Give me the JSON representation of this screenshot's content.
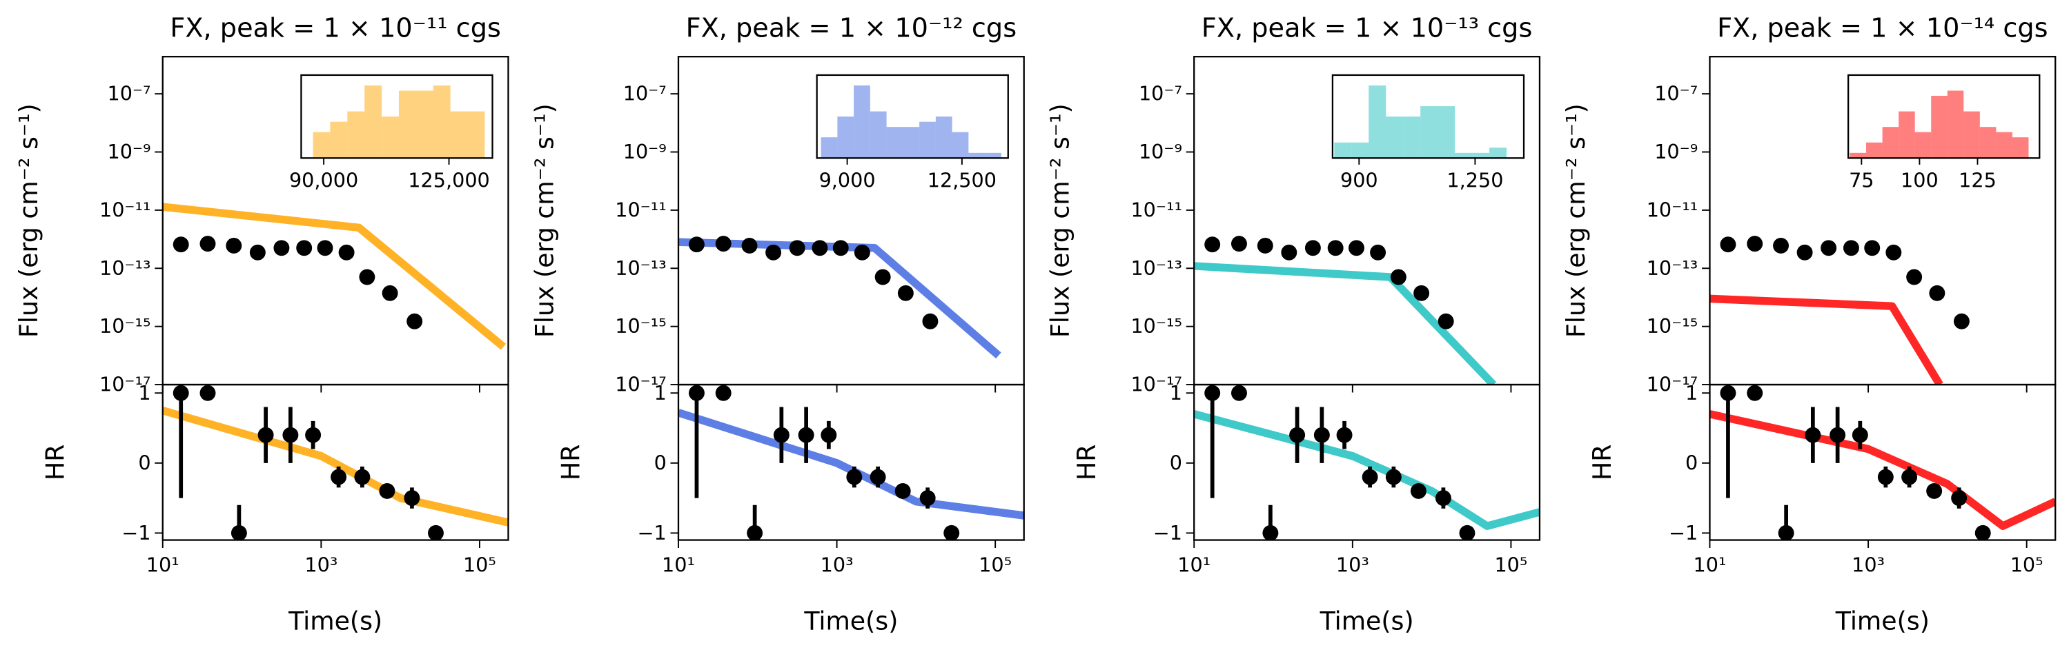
{
  "chart_data": [
    {
      "type": "line",
      "title": "FX, peak = 1 × 10⁻¹¹ cgs",
      "color": "#ffa500",
      "xlabel": "Time(s)",
      "log_x": true,
      "xlim": [
        10,
        230000
      ],
      "xticks": [
        {
          "value": 10,
          "label": "10¹"
        },
        {
          "value": 1000,
          "label": "10³"
        },
        {
          "value": 100000,
          "label": "10⁵"
        }
      ],
      "flux": {
        "ylabel": "Flux (erg cm⁻² s⁻¹)",
        "log_y": true,
        "ylim": [
          1e-17,
          1.9e-06
        ],
        "yticks": [
          {
            "value": 1e-07,
            "label": "10⁻⁷"
          },
          {
            "value": 1e-09,
            "label": "10⁻⁹"
          },
          {
            "value": 1e-11,
            "label": "10⁻¹¹"
          },
          {
            "value": 1e-13,
            "label": "10⁻¹³"
          },
          {
            "value": 1e-15,
            "label": "10⁻¹⁵"
          },
          {
            "value": 1e-17,
            "label": "10⁻¹⁷"
          }
        ],
        "data": {
          "x": [
            17,
            37,
            79,
            158,
            316,
            610,
            1120,
            2090,
            3800,
            7400,
            15100
          ],
          "values": [
            6.6e-13,
            7e-13,
            6e-13,
            3.5e-13,
            5e-13,
            5e-13,
            5e-13,
            3.5e-13,
            5e-14,
            1.4e-14,
            1.5e-15
          ]
        },
        "model": {
          "x": [
            10,
            3000,
            200000
          ],
          "values": [
            1.3e-11,
            2.5e-12,
            2e-16
          ]
        }
      },
      "hr": {
        "ylabel": "HR",
        "ylim": [
          -1.1,
          1.12
        ],
        "yticks": [
          {
            "value": -1,
            "label": "−1"
          },
          0,
          1
        ],
        "data": {
          "x": [
            17,
            37,
            92,
            200,
            410,
            790,
            1660,
            3300,
            6800,
            14000,
            28000
          ],
          "values": [
            1,
            1,
            -1,
            0.4,
            0.4,
            0.4,
            -0.2,
            -0.2,
            -0.4,
            -0.5,
            -1
          ],
          "errors": [
            1.5,
            0.1,
            0.4,
            0.4,
            0.4,
            0.2,
            0.15,
            0.15,
            0.05,
            0.15,
            0.1
          ]
        },
        "model": {
          "x": [
            10,
            1000,
            10000,
            230000
          ],
          "values": [
            0.75,
            0.1,
            -0.5,
            -0.85
          ]
        }
      },
      "inset": {
        "type": "histogram",
        "xlim": [
          83700,
          137150
        ],
        "ylim": [
          0,
          16
        ],
        "xticks": [
          {
            "value": 90000,
            "label": "90,000"
          },
          {
            "value": 125000,
            "label": "125,000"
          }
        ],
        "bins": [
          87000,
          91800,
          96600,
          101400,
          106200,
          111000,
          115800,
          120600,
          125400,
          130200,
          135000
        ],
        "counts": [
          5,
          7,
          9,
          14,
          8,
          13,
          13,
          14,
          9,
          9
        ]
      }
    },
    {
      "type": "line",
      "title": "FX, peak = 1 × 10⁻¹² cgs",
      "color": "#4169e1",
      "xlabel": "Time(s)",
      "log_x": true,
      "xlim": [
        10,
        230000
      ],
      "xticks": [
        {
          "value": 10,
          "label": "10¹"
        },
        {
          "value": 1000,
          "label": "10³"
        },
        {
          "value": 100000,
          "label": "10⁵"
        }
      ],
      "flux": {
        "ylabel": "Flux (erg cm⁻² s⁻¹)",
        "log_y": true,
        "ylim": [
          1e-17,
          1.9e-06
        ],
        "yticks": [
          {
            "value": 1e-07,
            "label": "10⁻⁷"
          },
          {
            "value": 1e-09,
            "label": "10⁻⁹"
          },
          {
            "value": 1e-11,
            "label": "10⁻¹¹"
          },
          {
            "value": 1e-13,
            "label": "10⁻¹³"
          },
          {
            "value": 1e-15,
            "label": "10⁻¹⁵"
          },
          {
            "value": 1e-17,
            "label": "10⁻¹⁷"
          }
        ],
        "data": {
          "x": [
            17,
            37,
            79,
            158,
            316,
            610,
            1120,
            2090,
            3800,
            7400,
            15100
          ],
          "values": [
            6.6e-13,
            7e-13,
            6e-13,
            3.5e-13,
            5e-13,
            5e-13,
            5e-13,
            3.5e-13,
            5e-14,
            1.4e-14,
            1.5e-15
          ]
        },
        "model": {
          "x": [
            10,
            3000,
            110000
          ],
          "values": [
            8e-13,
            5e-13,
            1e-16
          ]
        }
      },
      "hr": {
        "ylabel": "HR",
        "ylim": [
          -1.1,
          1.12
        ],
        "yticks": [
          {
            "value": -1,
            "label": "−1"
          },
          0,
          1
        ],
        "data": {
          "x": [
            17,
            37,
            92,
            200,
            410,
            790,
            1660,
            3300,
            6800,
            14000,
            28000
          ],
          "values": [
            1,
            1,
            -1,
            0.4,
            0.4,
            0.4,
            -0.2,
            -0.2,
            -0.4,
            -0.5,
            -1
          ],
          "errors": [
            1.5,
            0.1,
            0.4,
            0.4,
            0.4,
            0.2,
            0.15,
            0.15,
            0.05,
            0.15,
            0.1
          ]
        },
        "model": {
          "x": [
            10,
            1000,
            10000,
            230000
          ],
          "values": [
            0.72,
            0.0,
            -0.55,
            -0.75
          ]
        }
      },
      "inset": {
        "type": "histogram",
        "xlim": [
          8075,
          13908
        ],
        "ylim": [
          0,
          16
        ],
        "xticks": [
          {
            "value": 9000,
            "label": "9,000"
          },
          {
            "value": 12500,
            "label": "12,500"
          }
        ],
        "bins": [
          8200,
          8700,
          9200,
          9700,
          10200,
          10700,
          11200,
          11700,
          12200,
          12700,
          13200,
          13700
        ],
        "counts": [
          4,
          8,
          14,
          9,
          6,
          6,
          7,
          8,
          5,
          1,
          1
        ]
      }
    },
    {
      "type": "line",
      "title": "FX, peak = 1 × 10⁻¹³ cgs",
      "color": "#1fbfbf",
      "xlabel": "Time(s)",
      "log_x": true,
      "xlim": [
        10,
        230000
      ],
      "xticks": [
        {
          "value": 10,
          "label": "10¹"
        },
        {
          "value": 1000,
          "label": "10³"
        },
        {
          "value": 100000,
          "label": "10⁵"
        }
      ],
      "flux": {
        "ylabel": "Flux (erg cm⁻² s⁻¹)",
        "log_y": true,
        "ylim": [
          1e-17,
          1.9e-06
        ],
        "yticks": [
          {
            "value": 1e-07,
            "label": "10⁻⁷"
          },
          {
            "value": 1e-09,
            "label": "10⁻⁹"
          },
          {
            "value": 1e-11,
            "label": "10⁻¹¹"
          },
          {
            "value": 1e-13,
            "label": "10⁻¹³"
          },
          {
            "value": 1e-15,
            "label": "10⁻¹⁵"
          },
          {
            "value": 1e-17,
            "label": "10⁻¹⁷"
          }
        ],
        "data": {
          "x": [
            17,
            37,
            79,
            158,
            316,
            610,
            1120,
            2090,
            3800,
            7400,
            15100
          ],
          "values": [
            6.6e-13,
            7e-13,
            6e-13,
            3.5e-13,
            5e-13,
            5e-13,
            5e-13,
            3.5e-13,
            5e-14,
            1.4e-14,
            1.5e-15
          ]
        },
        "model": {
          "x": [
            10,
            3000,
            60000
          ],
          "values": [
            1.2e-13,
            5e-14,
            1e-17
          ]
        }
      },
      "hr": {
        "ylabel": "HR",
        "ylim": [
          -1.1,
          1.12
        ],
        "yticks": [
          {
            "value": -1,
            "label": "−1"
          },
          0,
          1
        ],
        "data": {
          "x": [
            17,
            37,
            92,
            200,
            410,
            790,
            1660,
            3300,
            6800,
            14000,
            28000
          ],
          "values": [
            1,
            1,
            -1,
            0.4,
            0.4,
            0.4,
            -0.2,
            -0.2,
            -0.4,
            -0.5,
            -1
          ],
          "errors": [
            1.5,
            0.1,
            0.4,
            0.4,
            0.4,
            0.2,
            0.15,
            0.15,
            0.05,
            0.15,
            0.1
          ]
        },
        "model": {
          "x": [
            10,
            1000,
            10000,
            50000,
            230000
          ],
          "values": [
            0.7,
            0.1,
            -0.4,
            -0.9,
            -0.7
          ]
        }
      },
      "inset": {
        "type": "histogram",
        "xlim": [
          820,
          1397
        ],
        "ylim": [
          0,
          16
        ],
        "xticks": [
          {
            "value": 900,
            "label": "900"
          },
          {
            "value": 1250,
            "label": "1,250"
          }
        ],
        "bins": [
          825,
          877,
          929,
          981,
          1033,
          1085,
          1137,
          1189,
          1241,
          1293,
          1345
        ],
        "counts": [
          3,
          3,
          14,
          8,
          8,
          10,
          10,
          1,
          1,
          2
        ]
      }
    },
    {
      "type": "line",
      "title": "FX, peak = 1 × 10⁻¹⁴ cgs",
      "color": "#ff0000",
      "xlabel": "Time(s)",
      "log_x": true,
      "xlim": [
        10,
        230000
      ],
      "xticks": [
        {
          "value": 10,
          "label": "10¹"
        },
        {
          "value": 1000,
          "label": "10³"
        },
        {
          "value": 100000,
          "label": "10⁵"
        }
      ],
      "flux": {
        "ylabel": "Flux (erg cm⁻² s⁻¹)",
        "log_y": true,
        "ylim": [
          1e-17,
          1.9e-06
        ],
        "yticks": [
          {
            "value": 1e-07,
            "label": "10⁻⁷"
          },
          {
            "value": 1e-09,
            "label": "10⁻⁹"
          },
          {
            "value": 1e-11,
            "label": "10⁻¹¹"
          },
          {
            "value": 1e-13,
            "label": "10⁻¹³"
          },
          {
            "value": 1e-15,
            "label": "10⁻¹⁵"
          },
          {
            "value": 1e-17,
            "label": "10⁻¹⁷"
          }
        ],
        "data": {
          "x": [
            17,
            37,
            79,
            158,
            316,
            610,
            1120,
            2090,
            3800,
            7400,
            15100
          ],
          "values": [
            6.6e-13,
            7e-13,
            6e-13,
            3.5e-13,
            5e-13,
            5e-13,
            5e-13,
            3.5e-13,
            5e-14,
            1.4e-14,
            1.5e-15
          ]
        },
        "model": {
          "x": [
            10,
            2000,
            8000
          ],
          "values": [
            9e-15,
            5e-15,
            1e-17
          ]
        }
      },
      "hr": {
        "ylabel": "HR",
        "ylim": [
          -1.1,
          1.12
        ],
        "yticks": [
          {
            "value": -1,
            "label": "−1"
          },
          0,
          1
        ],
        "data": {
          "x": [
            17,
            37,
            92,
            200,
            410,
            790,
            1660,
            3300,
            6800,
            14000,
            28000
          ],
          "values": [
            1,
            1,
            -1,
            0.4,
            0.4,
            0.4,
            -0.2,
            -0.2,
            -0.4,
            -0.5,
            -1
          ],
          "errors": [
            1.5,
            0.1,
            0.4,
            0.4,
            0.4,
            0.2,
            0.15,
            0.15,
            0.05,
            0.15,
            0.1
          ]
        },
        "model": {
          "x": [
            10,
            1000,
            10000,
            50000,
            230000
          ],
          "values": [
            0.7,
            0.2,
            -0.3,
            -0.9,
            -0.55
          ]
        }
      },
      "inset": {
        "type": "histogram",
        "xlim": [
          69.3,
          151.7
        ],
        "ylim": [
          0,
          16
        ],
        "xticks": [
          {
            "value": 75,
            "label": "75"
          },
          {
            "value": 100,
            "label": "100"
          },
          {
            "value": 125,
            "label": "125"
          }
        ],
        "bins": [
          70,
          77,
          84,
          91,
          98,
          105,
          112,
          119,
          126,
          133,
          140,
          147
        ],
        "counts": [
          1,
          3,
          6,
          9,
          5,
          12,
          13,
          9,
          6,
          5,
          4
        ]
      }
    }
  ]
}
